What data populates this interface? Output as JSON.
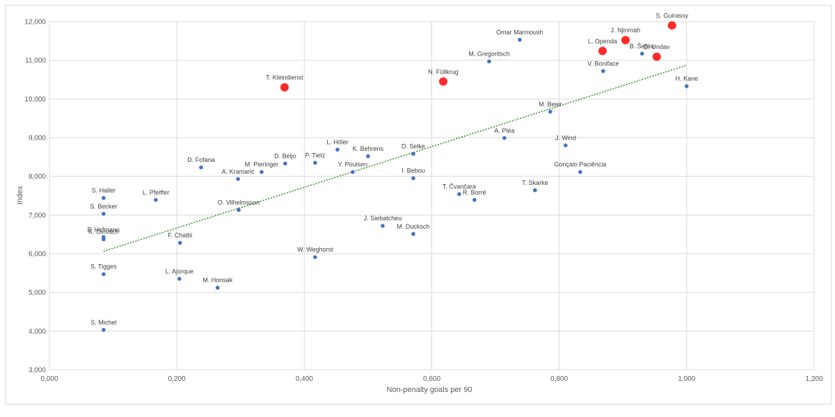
{
  "chart_data": {
    "type": "scatter",
    "title": "",
    "xlabel": "Non-penalty goals per 90",
    "ylabel": "Index",
    "xlim": [
      0,
      1.2
    ],
    "ylim": [
      3000,
      12000
    ],
    "x_ticks": [
      "0,000",
      "0,200",
      "0,400",
      "0,600",
      "0,800",
      "1,000",
      "1,200"
    ],
    "y_ticks": [
      "3,000",
      "4,000",
      "5,000",
      "6,000",
      "7,000",
      "8,000",
      "9,000",
      "10,000",
      "11,000",
      "12,000"
    ],
    "grid": true,
    "colors": {
      "normal": "#4472c4",
      "highlight": "#ff2a2a",
      "trend": "#3a8f2c"
    },
    "trendline": {
      "x": [
        0.085,
        1.0
      ],
      "y": [
        6060,
        10870
      ]
    },
    "points": [
      {
        "name": "S. Guirassy",
        "x": 0.977,
        "y": 11900,
        "highlight": true
      },
      {
        "name": "J. Njinmah",
        "x": 0.904,
        "y": 11520,
        "highlight": true
      },
      {
        "name": "B. Šeško",
        "x": 0.93,
        "y": 11170,
        "highlight": false
      },
      {
        "name": "L. Openda",
        "x": 0.868,
        "y": 11240,
        "highlight": true
      },
      {
        "name": "D. Undav",
        "x": 0.953,
        "y": 11090,
        "highlight": true
      },
      {
        "name": "Omar Marmoush",
        "x": 0.738,
        "y": 11530,
        "highlight": false
      },
      {
        "name": "M. Gregoritsch",
        "x": 0.69,
        "y": 10970,
        "highlight": false
      },
      {
        "name": "V. Boniface",
        "x": 0.869,
        "y": 10720,
        "highlight": false
      },
      {
        "name": "N. Füllkrug",
        "x": 0.618,
        "y": 10450,
        "highlight": true
      },
      {
        "name": "T. Kleindienst",
        "x": 0.369,
        "y": 10300,
        "highlight": true
      },
      {
        "name": "H. Kane",
        "x": 1.0,
        "y": 10330,
        "highlight": false
      },
      {
        "name": "M. Beier",
        "x": 0.786,
        "y": 9670,
        "highlight": false
      },
      {
        "name": "A. Pléa",
        "x": 0.714,
        "y": 8990,
        "highlight": false
      },
      {
        "name": "J. Wind",
        "x": 0.81,
        "y": 8800,
        "highlight": false
      },
      {
        "name": "L. Höler",
        "x": 0.452,
        "y": 8690,
        "highlight": false
      },
      {
        "name": "D. Selke",
        "x": 0.571,
        "y": 8580,
        "highlight": false
      },
      {
        "name": "K. Behrens",
        "x": 0.5,
        "y": 8520,
        "highlight": false
      },
      {
        "name": "D. Beljo",
        "x": 0.37,
        "y": 8330,
        "highlight": false
      },
      {
        "name": "P. Tietz",
        "x": 0.417,
        "y": 8350,
        "highlight": false
      },
      {
        "name": "D. Fofana",
        "x": 0.238,
        "y": 8230,
        "highlight": false
      },
      {
        "name": "M. Pieringer",
        "x": 0.333,
        "y": 8110,
        "highlight": false
      },
      {
        "name": "Y. Poulsen",
        "x": 0.476,
        "y": 8110,
        "highlight": false
      },
      {
        "name": "Gonçalo Paciência",
        "x": 0.833,
        "y": 8110,
        "highlight": false
      },
      {
        "name": "I. Bebou",
        "x": 0.571,
        "y": 7950,
        "highlight": false
      },
      {
        "name": "A. Kramarić",
        "x": 0.296,
        "y": 7930,
        "highlight": false
      },
      {
        "name": "T. Skarke",
        "x": 0.762,
        "y": 7640,
        "highlight": false
      },
      {
        "name": "T. Čvančara",
        "x": 0.643,
        "y": 7540,
        "highlight": false
      },
      {
        "name": "S. Haller",
        "x": 0.085,
        "y": 7440,
        "highlight": false
      },
      {
        "name": "L. Pfeiffer",
        "x": 0.167,
        "y": 7390,
        "highlight": false
      },
      {
        "name": "R. Borré",
        "x": 0.667,
        "y": 7390,
        "highlight": false
      },
      {
        "name": "O. Vilhelmsson",
        "x": 0.297,
        "y": 7130,
        "highlight": false
      },
      {
        "name": "S. Becker",
        "x": 0.085,
        "y": 7030,
        "highlight": false
      },
      {
        "name": "J. Siebatcheu",
        "x": 0.523,
        "y": 6720,
        "highlight": false
      },
      {
        "name": "M. Ducksch",
        "x": 0.571,
        "y": 6510,
        "highlight": false
      },
      {
        "name": "P. Hofmann",
        "x": 0.085,
        "y": 6430,
        "highlight": false
      },
      {
        "name": "K. Olmisch",
        "x": 0.085,
        "y": 6370,
        "highlight": false
      },
      {
        "name": "F. Chaibi",
        "x": 0.205,
        "y": 6280,
        "highlight": false
      },
      {
        "name": "W. Weghorst",
        "x": 0.417,
        "y": 5910,
        "highlight": false
      },
      {
        "name": "S. Tigges",
        "x": 0.085,
        "y": 5470,
        "highlight": false
      },
      {
        "name": "L. Ajorque",
        "x": 0.204,
        "y": 5350,
        "highlight": false
      },
      {
        "name": "M. Honsak",
        "x": 0.264,
        "y": 5120,
        "highlight": false
      },
      {
        "name": "S. Michel",
        "x": 0.085,
        "y": 4030,
        "highlight": false
      }
    ]
  }
}
